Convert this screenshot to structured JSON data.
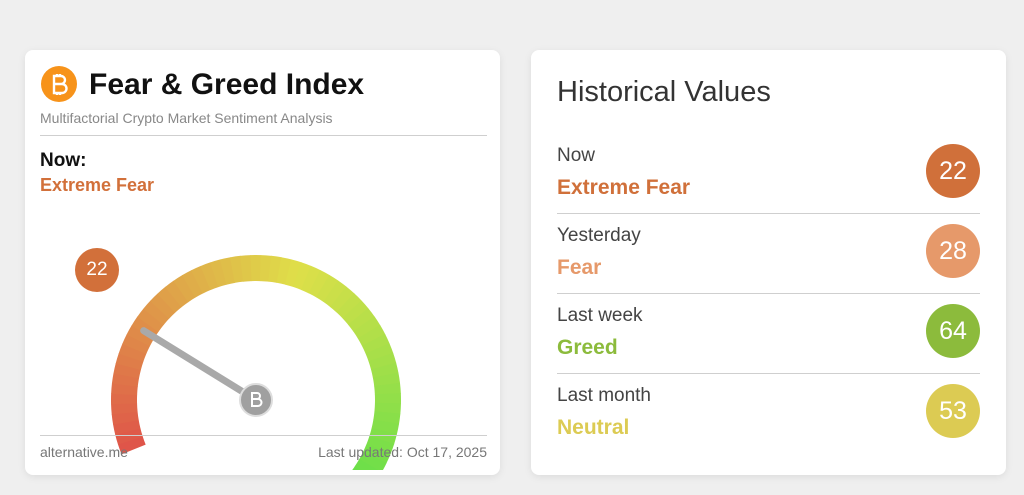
{
  "header": {
    "title": "Fear & Greed Index",
    "subtitle": "Multifactorial Crypto Market Sentiment Analysis"
  },
  "now": {
    "label": "Now:",
    "classification": "Extreme Fear",
    "value": 22,
    "color": "#d2703a"
  },
  "gauge": {
    "lim": [
      0,
      100
    ]
  },
  "footer": {
    "source": "alternative.me",
    "updated": "Last updated: Oct 17, 2025"
  },
  "history": {
    "title": "Historical Values",
    "items": [
      {
        "label": "Now",
        "classification": "Extreme Fear",
        "value": 22,
        "color": "#d0703a"
      },
      {
        "label": "Yesterday",
        "classification": "Fear",
        "value": 28,
        "color": "#e6996a"
      },
      {
        "label": "Last week",
        "classification": "Greed",
        "value": 64,
        "color": "#8cbb3c"
      },
      {
        "label": "Last month",
        "classification": "Neutral",
        "value": 53,
        "color": "#dccb53"
      }
    ]
  }
}
